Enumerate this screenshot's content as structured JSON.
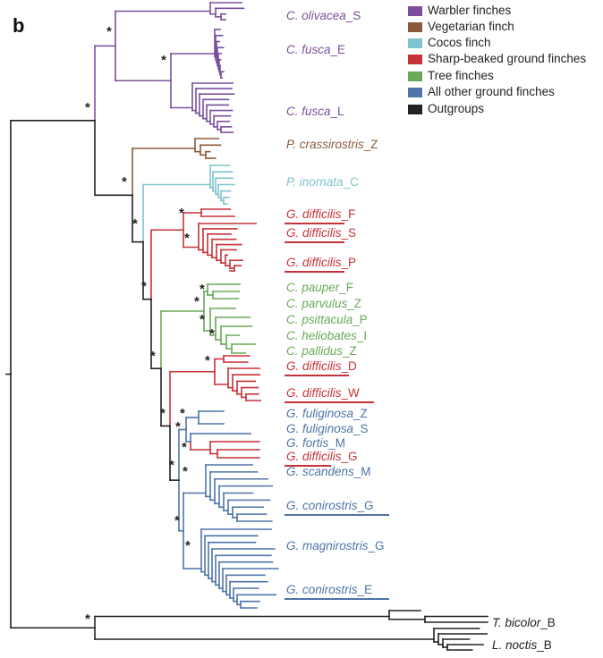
{
  "panel_label": "b",
  "support_marker": "*",
  "colors": {
    "warbler": "#7a509c",
    "vegetarian": "#8c5a3b",
    "cocos": "#7fc3cd",
    "sharp": "#c7323a",
    "tree": "#69a957",
    "ground": "#4f74a8",
    "outgroup": "#222222"
  },
  "legend": [
    {
      "label": "Warbler finches",
      "color": "#7a509c"
    },
    {
      "label": "Vegetarian finch",
      "color": "#8c5a3b"
    },
    {
      "label": "Cocos finch",
      "color": "#7fc3cd"
    },
    {
      "label": "Sharp-beaked ground finches",
      "color": "#c7323a"
    },
    {
      "label": "Tree finches",
      "color": "#69a957"
    },
    {
      "label": "All other ground finches",
      "color": "#4f74a8"
    },
    {
      "label": "Outgroups",
      "color": "#222222"
    }
  ],
  "taxa": [
    {
      "species": "C. olivacea",
      "suffix": "_S",
      "group": "warbler",
      "underlined": false
    },
    {
      "species": "C. fusca",
      "suffix": "_E",
      "group": "warbler",
      "underlined": false
    },
    {
      "species": "C. fusca",
      "suffix": "_L",
      "group": "warbler",
      "underlined": false
    },
    {
      "species": "P. crassirostris",
      "suffix": "_Z",
      "group": "vegetarian",
      "underlined": false
    },
    {
      "species": "P. inornata",
      "suffix": "_C",
      "group": "cocos",
      "underlined": false
    },
    {
      "species": "G. difficilis",
      "suffix": "_F",
      "group": "sharp",
      "underlined": true
    },
    {
      "species": "G. difficilis",
      "suffix": "_S",
      "group": "sharp",
      "underlined": true
    },
    {
      "species": "G. difficilis",
      "suffix": "_P",
      "group": "sharp",
      "underlined": true
    },
    {
      "species": "C. pauper",
      "suffix": "_F",
      "group": "tree",
      "underlined": false
    },
    {
      "species": "C. parvulus",
      "suffix": "_Z",
      "group": "tree",
      "underlined": false
    },
    {
      "species": "C. psittacula",
      "suffix": "_P",
      "group": "tree",
      "underlined": false
    },
    {
      "species": "C. heliobates",
      "suffix": "_I",
      "group": "tree",
      "underlined": false
    },
    {
      "species": "C. pallidus",
      "suffix": "_Z",
      "group": "tree",
      "underlined": false
    },
    {
      "species": "G. difficilis",
      "suffix": "_D",
      "group": "sharp",
      "underlined": true
    },
    {
      "species": "G. difficilis",
      "suffix": "_W",
      "group": "sharp",
      "underlined": true
    },
    {
      "species": "G. fuliginosa",
      "suffix": "_Z",
      "group": "ground",
      "underlined": false
    },
    {
      "species": "G. fuliginosa",
      "suffix": "_S",
      "group": "ground",
      "underlined": false
    },
    {
      "species": "G. fortis",
      "suffix": "_M",
      "group": "ground",
      "underlined": false
    },
    {
      "species": "G. difficilis",
      "suffix": "_G",
      "group": "sharp",
      "underlined": true
    },
    {
      "species": "G. scandens",
      "suffix": "_M",
      "group": "ground",
      "underlined": false
    },
    {
      "species": "G. conirostris",
      "suffix": "_G",
      "group": "ground",
      "underlined": true
    },
    {
      "species": "G. magnirostris",
      "suffix": "_G",
      "group": "ground",
      "underlined": false
    },
    {
      "species": "G. conirostris",
      "suffix": "_E",
      "group": "ground",
      "underlined": true
    },
    {
      "species": "T. bicolor",
      "suffix": "_B",
      "group": "outgroup",
      "underlined": false
    },
    {
      "species": "L. noctis",
      "suffix": "_B",
      "group": "outgroup",
      "underlined": false
    }
  ]
}
